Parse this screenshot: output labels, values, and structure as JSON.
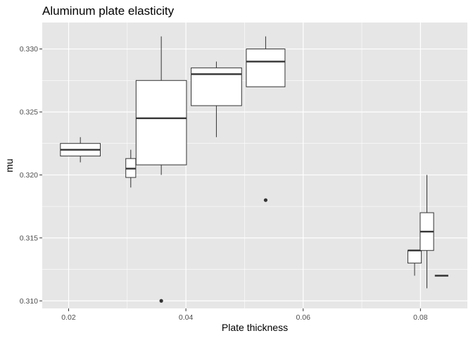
{
  "chart_data": {
    "type": "boxplot",
    "title": "Aluminum plate elasticity",
    "xlabel": "Plate thickness",
    "ylabel": "mu",
    "xlim": [
      0.0155,
      0.088
    ],
    "ylim": [
      0.3094,
      0.3321
    ],
    "x_ticks": [
      {
        "value": 0.02,
        "label": "0.02"
      },
      {
        "value": 0.04,
        "label": "0.04"
      },
      {
        "value": 0.06,
        "label": "0.06"
      },
      {
        "value": 0.08,
        "label": "0.08"
      }
    ],
    "x_minor_ticks": [
      0.03,
      0.05,
      0.07
    ],
    "y_ticks": [
      {
        "value": 0.31,
        "label": "0.310"
      },
      {
        "value": 0.315,
        "label": "0.315"
      },
      {
        "value": 0.32,
        "label": "0.320"
      },
      {
        "value": 0.325,
        "label": "0.325"
      },
      {
        "value": 0.33,
        "label": "0.330"
      }
    ],
    "y_minor_ticks": [
      0.3125,
      0.3175,
      0.3225,
      0.3275
    ],
    "grid": true,
    "colors": {
      "panel": "#e6e6e6",
      "grid": "#ffffff",
      "box_fill": "#ffffff",
      "box_stroke": "#333333"
    },
    "boxes": [
      {
        "x": 0.022,
        "width": 0.0068,
        "whisker_low": 0.321,
        "q1": 0.3215,
        "median": 0.322,
        "q3": 0.3225,
        "whisker_high": 0.323,
        "outliers": []
      },
      {
        "x": 0.0306,
        "width": 0.0017,
        "whisker_low": 0.319,
        "q1": 0.3198,
        "median": 0.3205,
        "q3": 0.3213,
        "whisker_high": 0.322,
        "outliers": []
      },
      {
        "x": 0.0358,
        "width": 0.0086,
        "whisker_low": 0.32,
        "q1": 0.3208,
        "median": 0.3245,
        "q3": 0.3275,
        "whisker_high": 0.331,
        "outliers": [
          0.31
        ]
      },
      {
        "x": 0.0452,
        "width": 0.0086,
        "whisker_low": 0.323,
        "q1": 0.3255,
        "median": 0.328,
        "q3": 0.3285,
        "whisker_high": 0.329,
        "outliers": []
      },
      {
        "x": 0.0536,
        "width": 0.0066,
        "whisker_low": 0.327,
        "q1": 0.327,
        "median": 0.329,
        "q3": 0.33,
        "whisker_high": 0.331,
        "outliers": [
          0.318
        ]
      },
      {
        "x": 0.079,
        "width": 0.0023,
        "whisker_low": 0.312,
        "q1": 0.313,
        "median": 0.314,
        "q3": 0.314,
        "whisker_high": 0.314,
        "outliers": []
      },
      {
        "x": 0.0811,
        "width": 0.0023,
        "whisker_low": 0.311,
        "q1": 0.314,
        "median": 0.3155,
        "q3": 0.317,
        "whisker_high": 0.32,
        "outliers": []
      },
      {
        "x": 0.0836,
        "width": 0.0023,
        "whisker_low": 0.312,
        "q1": 0.312,
        "median": 0.312,
        "q3": 0.312,
        "whisker_high": 0.312,
        "outliers": []
      }
    ]
  }
}
